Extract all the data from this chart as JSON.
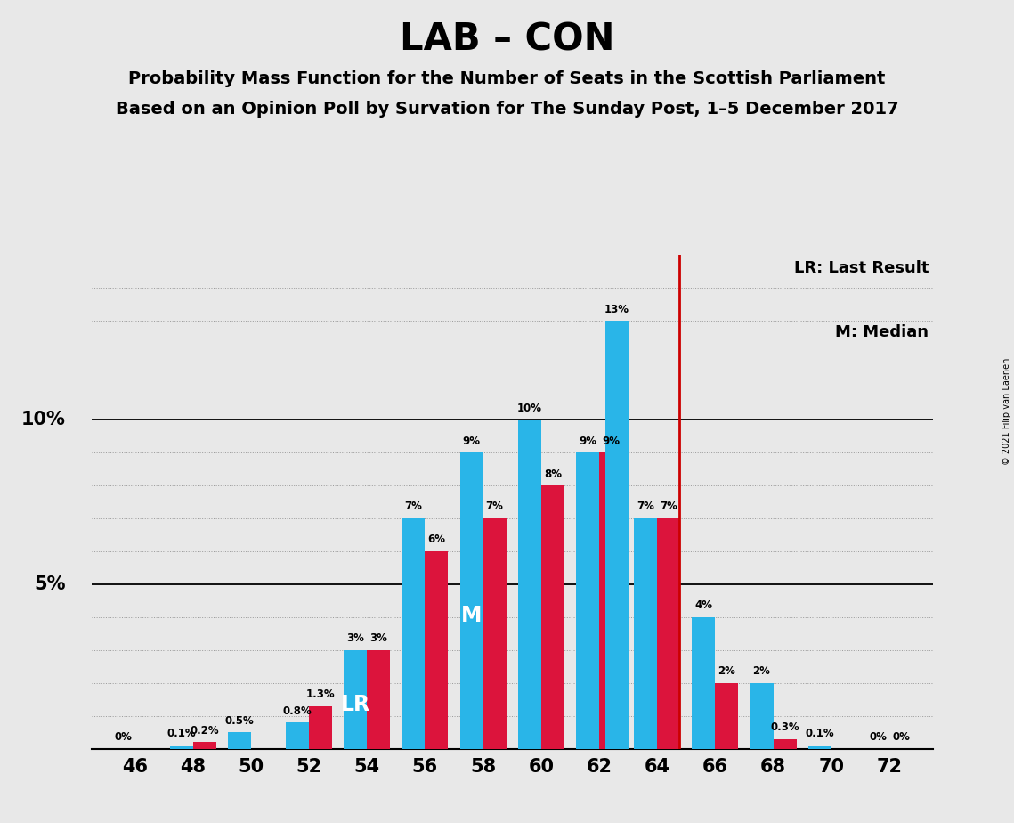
{
  "title": "LAB – CON",
  "subtitle1": "Probability Mass Function for the Number of Seats in the Scottish Parliament",
  "subtitle2": "Based on an Opinion Poll by Survation for The Sunday Post, 1–5 December 2017",
  "copyright": "© 2021 Filip van Laenen",
  "seats": [
    46,
    48,
    50,
    52,
    54,
    56,
    58,
    60,
    62,
    63,
    64,
    66,
    68,
    70,
    72
  ],
  "blue_values": [
    0.0,
    0.1,
    0.5,
    0.8,
    3.0,
    7.0,
    9.0,
    10.0,
    9.0,
    13.0,
    7.0,
    4.0,
    2.0,
    0.1,
    0.0
  ],
  "red_values": [
    0.0,
    0.2,
    0.0,
    1.3,
    3.0,
    6.0,
    7.0,
    8.0,
    9.0,
    0.0,
    7.0,
    2.0,
    0.3,
    0.0,
    0.0
  ],
  "blue_labels": [
    "0%",
    "0.1%",
    "0.5%",
    "0.8%",
    "3%",
    "7%",
    "9%",
    "10%",
    "9%",
    "13%",
    "7%",
    "4%",
    "2%",
    "0.1%",
    "0%"
  ],
  "red_labels": [
    "",
    "0.2%",
    "",
    "1.3%",
    "3%",
    "6%",
    "7%",
    "8%",
    "9%",
    "",
    "7%",
    "2%",
    "0.3%",
    "",
    "0%"
  ],
  "lr_seat": 54,
  "median_seat": 58,
  "vline_x": 64.75,
  "blue_color": "#29B5E8",
  "red_color": "#DC143C",
  "vline_color": "#CC0000",
  "background_color": "#E8E8E8",
  "grid_color": "#999999",
  "ylim_max": 15.0,
  "bar_width": 0.8,
  "xtick_seats": [
    46,
    48,
    50,
    52,
    54,
    56,
    58,
    60,
    62,
    64,
    66,
    68,
    70,
    72
  ]
}
